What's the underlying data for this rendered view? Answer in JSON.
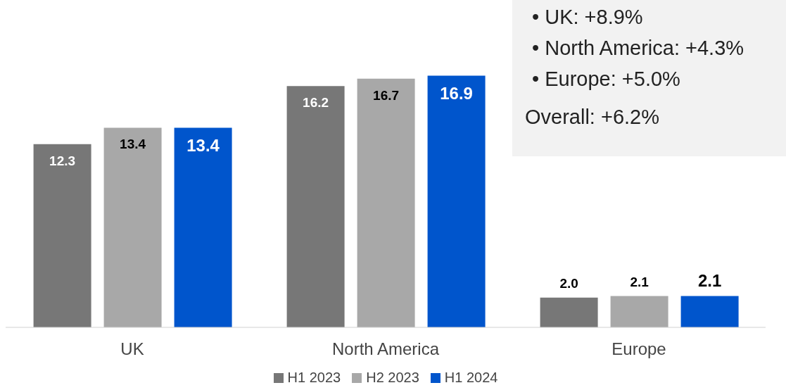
{
  "chart_data": {
    "type": "bar",
    "categories": [
      "UK",
      "North America",
      "Europe"
    ],
    "series": [
      {
        "name": "H1 2023",
        "color": "#777777",
        "values": [
          12.3,
          16.2,
          2.0
        ],
        "value_labels": [
          "12.3",
          "16.2",
          "2.0"
        ]
      },
      {
        "name": "H2 2023",
        "color": "#a8a8a8",
        "values": [
          13.4,
          16.7,
          2.1
        ],
        "value_labels": [
          "13.4",
          "16.7",
          "2.1"
        ]
      },
      {
        "name": "H1 2024",
        "color": "#0055cc",
        "values": [
          13.4,
          16.9,
          2.1
        ],
        "value_labels": [
          "13.4",
          "16.9",
          "2.1"
        ]
      }
    ],
    "legend": "bottom",
    "annotations": [
      "• UK: +8.9%",
      "• North America: +4.3%",
      "• Europe: +5.0%",
      "Overall: +6.2%"
    ]
  }
}
